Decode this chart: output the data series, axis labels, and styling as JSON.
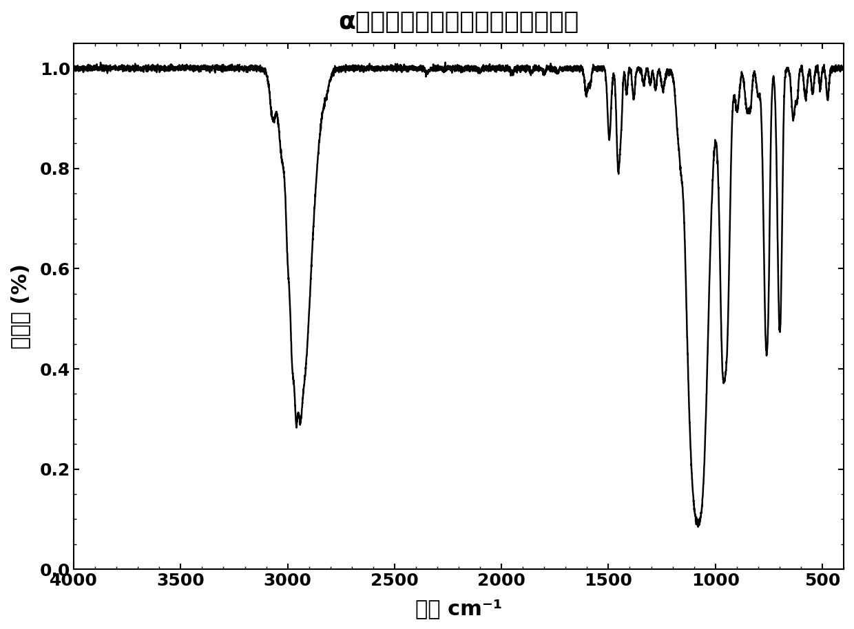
{
  "title": "α－（苯乙基）疏甲基三乙氧基硬烷",
  "xlabel": "波数 cm⁻¹",
  "ylabel": "透光度 (%)",
  "xlim": [
    4000,
    400
  ],
  "ylim": [
    0.0,
    1.05
  ],
  "yticks": [
    0.0,
    0.2,
    0.4,
    0.6,
    0.8,
    1.0
  ],
  "xticks": [
    4000,
    3500,
    3000,
    2500,
    2000,
    1500,
    1000,
    500
  ],
  "line_color": "#000000",
  "line_width": 1.8,
  "background_color": "#ffffff",
  "title_fontsize": 26,
  "axis_label_fontsize": 22,
  "tick_fontsize": 18
}
